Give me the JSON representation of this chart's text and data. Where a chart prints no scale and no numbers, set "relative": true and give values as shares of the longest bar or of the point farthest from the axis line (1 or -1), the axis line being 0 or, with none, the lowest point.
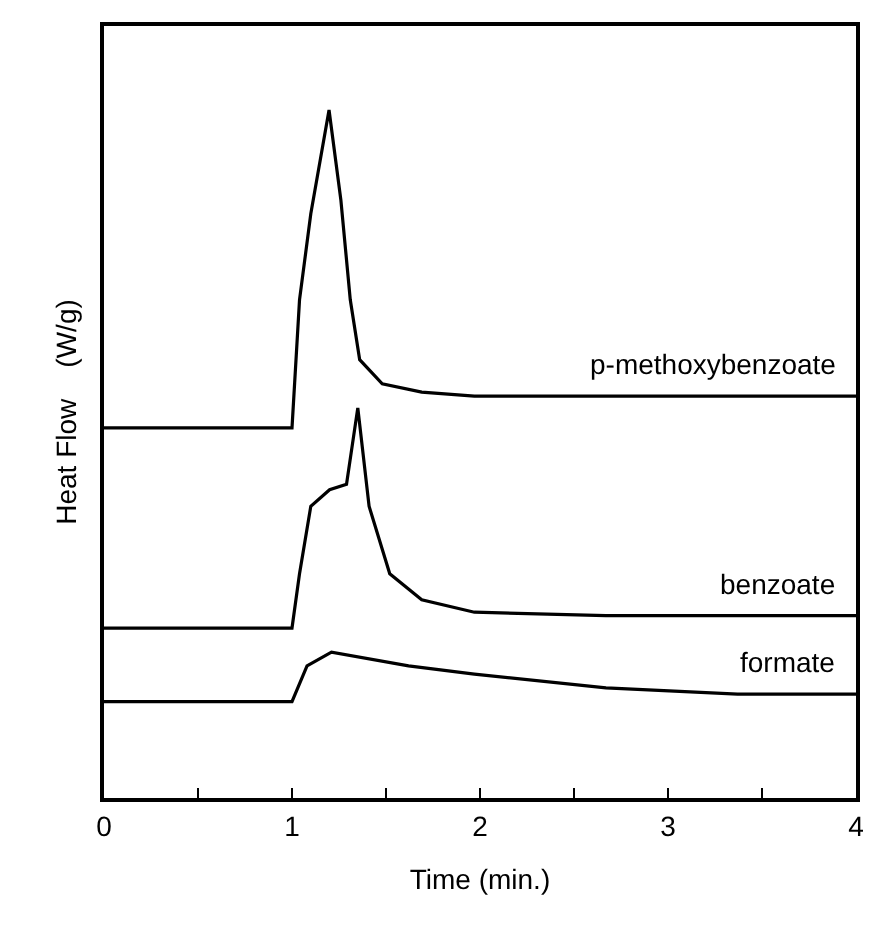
{
  "chart_data": {
    "type": "line",
    "relative": true,
    "xlabel": "Time (min.)",
    "ylabel": "Heat Flow    (W/g)",
    "xlim": [
      0,
      4
    ],
    "xticks": [
      0,
      {
        "value": 0.5,
        "label": null
      },
      1,
      {
        "value": 1.5,
        "label": null
      },
      2,
      {
        "value": 2.5,
        "label": null
      },
      3,
      {
        "value": 3.5,
        "label": null
      },
      4
    ],
    "tick_labels": "x",
    "legend": false,
    "marker": "none",
    "line_style": "solid",
    "series": [
      {
        "name": "p-methoxybenzoate",
        "color": "#000000",
        "x": [
          0,
          1.0,
          1.04,
          1.1,
          1.197,
          1.26,
          1.31,
          1.36,
          1.48,
          1.69,
          1.97,
          2.5,
          4
        ],
        "values": [
          0.538,
          0.538,
          0.724,
          0.849,
          1.0,
          0.869,
          0.724,
          0.637,
          0.602,
          0.59,
          0.584,
          0.584,
          0.584
        ]
      },
      {
        "name": "benzoate",
        "color": "#000000",
        "x": [
          0,
          1.0,
          1.04,
          1.1,
          1.2,
          1.29,
          1.35,
          1.41,
          1.52,
          1.69,
          1.97,
          2.67,
          4
        ],
        "values": [
          0.247,
          0.247,
          0.326,
          0.424,
          0.448,
          0.456,
          0.567,
          0.424,
          0.326,
          0.288,
          0.27,
          0.265,
          0.265
        ]
      },
      {
        "name": "formate",
        "color": "#000000",
        "x": [
          0,
          1.0,
          1.08,
          1.21,
          1.62,
          1.97,
          2.67,
          3.37,
          4
        ],
        "values": [
          0.14,
          0.14,
          0.192,
          0.212,
          0.192,
          0.18,
          0.16,
          0.151,
          0.151
        ]
      }
    ]
  }
}
